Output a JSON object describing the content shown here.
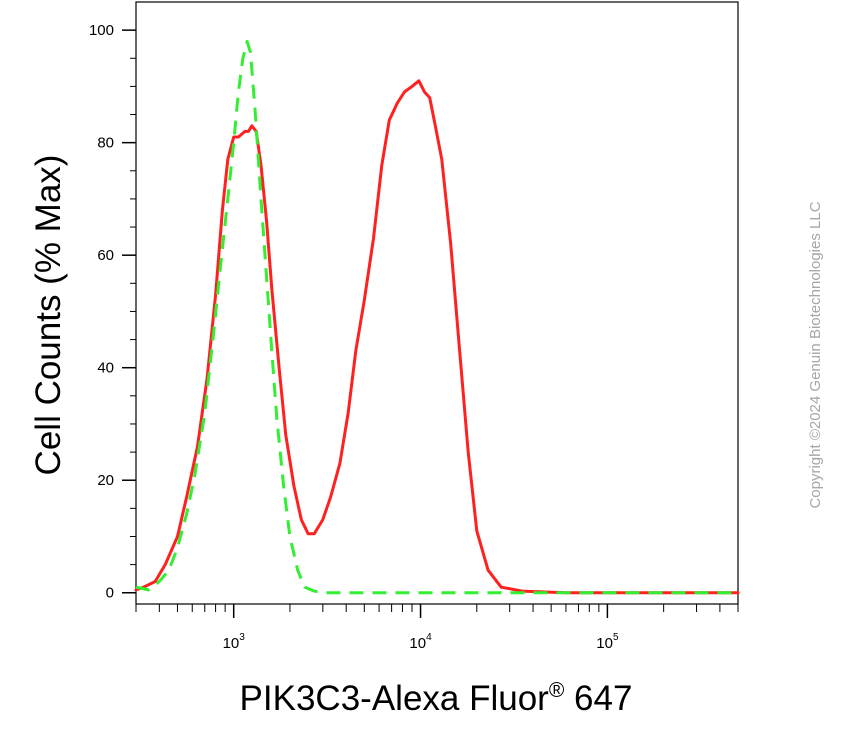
{
  "chart_data": {
    "type": "line",
    "xlabel": "PIK3C3-Alexa Fluor",
    "xlabel_superscript": "®",
    "xlabel_suffix": " 647",
    "ylabel": "Cell Counts (% Max)",
    "x_scale": "log",
    "xlim": [
      300,
      500000
    ],
    "ylim": [
      -2,
      105
    ],
    "yticks": [
      0,
      20,
      40,
      60,
      80,
      100
    ],
    "xticks": [
      {
        "value": 1000,
        "base": "10",
        "exp": "3"
      },
      {
        "value": 10000,
        "base": "10",
        "exp": "4"
      },
      {
        "value": 100000,
        "base": "10",
        "exp": "5"
      }
    ],
    "grid": false,
    "legend": "none",
    "series": [
      {
        "color": "#ff2020",
        "style": "solid",
        "points": [
          [
            300,
            0.5
          ],
          [
            330,
            1
          ],
          [
            380,
            2
          ],
          [
            430,
            5
          ],
          [
            500,
            10
          ],
          [
            560,
            17
          ],
          [
            640,
            26
          ],
          [
            720,
            38
          ],
          [
            800,
            53
          ],
          [
            870,
            68
          ],
          [
            930,
            77
          ],
          [
            1000,
            81
          ],
          [
            1060,
            81
          ],
          [
            1150,
            82
          ],
          [
            1200,
            82
          ],
          [
            1250,
            83
          ],
          [
            1320,
            82
          ],
          [
            1400,
            76
          ],
          [
            1500,
            66
          ],
          [
            1600,
            54
          ],
          [
            1750,
            40
          ],
          [
            1900,
            28
          ],
          [
            2100,
            19
          ],
          [
            2300,
            13
          ],
          [
            2500,
            10.5
          ],
          [
            2700,
            10.5
          ],
          [
            3000,
            13
          ],
          [
            3300,
            17
          ],
          [
            3700,
            23
          ],
          [
            4100,
            32
          ],
          [
            4500,
            43
          ],
          [
            5000,
            52
          ],
          [
            5600,
            63
          ],
          [
            6200,
            76
          ],
          [
            6800,
            84
          ],
          [
            7500,
            87
          ],
          [
            8200,
            89
          ],
          [
            9000,
            90
          ],
          [
            9800,
            91
          ],
          [
            10500,
            89
          ],
          [
            11200,
            88
          ],
          [
            12000,
            83
          ],
          [
            13000,
            77
          ],
          [
            14500,
            62
          ],
          [
            16000,
            45
          ],
          [
            18000,
            25
          ],
          [
            20000,
            11
          ],
          [
            23000,
            4
          ],
          [
            27000,
            1
          ],
          [
            35000,
            0.3
          ],
          [
            60000,
            0
          ],
          [
            100000,
            0
          ],
          [
            200000,
            0
          ],
          [
            500000,
            0
          ]
        ]
      },
      {
        "color": "#33ee33",
        "style": "dashed",
        "points": [
          [
            300,
            1
          ],
          [
            350,
            0.5
          ],
          [
            400,
            2
          ],
          [
            450,
            4
          ],
          [
            500,
            8
          ],
          [
            560,
            14
          ],
          [
            620,
            21
          ],
          [
            700,
            32
          ],
          [
            780,
            46
          ],
          [
            850,
            58
          ],
          [
            930,
            70
          ],
          [
            1000,
            80
          ],
          [
            1060,
            89
          ],
          [
            1120,
            95
          ],
          [
            1180,
            98
          ],
          [
            1230,
            96
          ],
          [
            1300,
            86
          ],
          [
            1400,
            70
          ],
          [
            1500,
            56
          ],
          [
            1600,
            43
          ],
          [
            1700,
            31
          ],
          [
            1850,
            19
          ],
          [
            2000,
            10
          ],
          [
            2200,
            4
          ],
          [
            2400,
            1
          ],
          [
            2700,
            0.3
          ],
          [
            3000,
            0
          ],
          [
            10000,
            0
          ],
          [
            100000,
            0
          ],
          [
            500000,
            0
          ]
        ]
      }
    ]
  },
  "watermark": "Copyright ©2024 Genuin Biotechnologies LLC"
}
